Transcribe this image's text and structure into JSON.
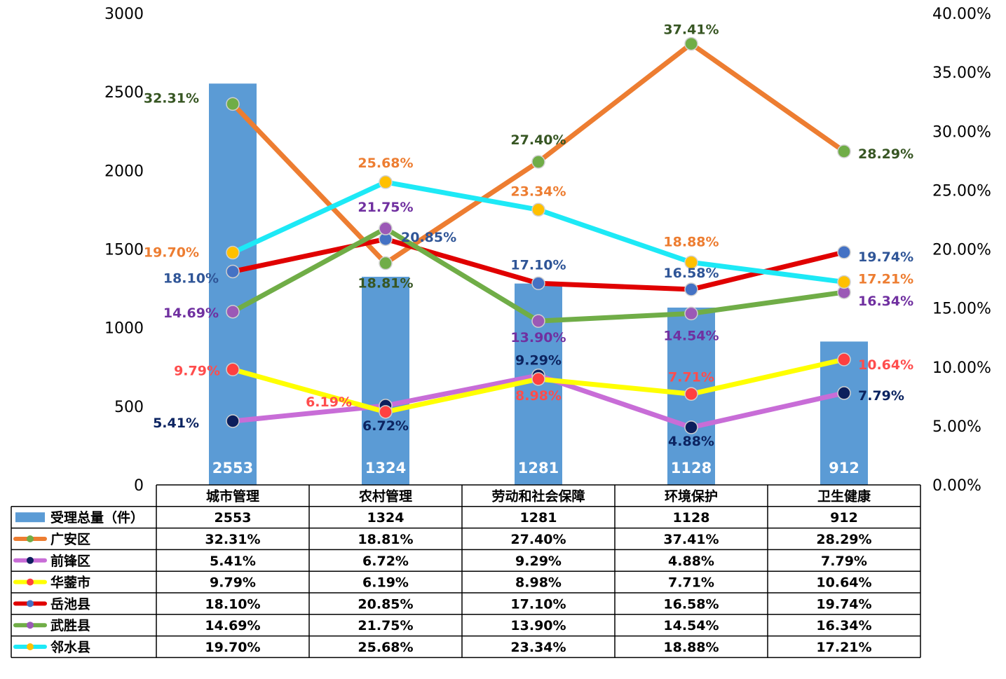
{
  "chart_data": {
    "type": "bar-line-combo",
    "categories": [
      "城市管理",
      "农村管理",
      "劳动和社会保障",
      "环境保护",
      "卫生健康"
    ],
    "bar_series": {
      "name": "受理总量（件）",
      "values": [
        2553,
        1324,
        1281,
        1128,
        912
      ],
      "color": "#5b9bd5"
    },
    "left_axis": {
      "min": 0,
      "max": 3000,
      "step": 500,
      "ticks": [
        "0",
        "500",
        "1000",
        "1500",
        "2000",
        "2500",
        "3000"
      ]
    },
    "right_axis": {
      "min": 0,
      "max": 40,
      "step": 5,
      "ticks": [
        "0.00%",
        "5.00%",
        "10.00%",
        "15.00%",
        "20.00%",
        "25.00%",
        "30.00%",
        "35.00%",
        "40.00%"
      ]
    },
    "line_series": [
      {
        "name": "广安区",
        "values": [
          32.31,
          18.81,
          27.4,
          37.41,
          28.29
        ],
        "labels": [
          "32.31%",
          "18.81%",
          "27.40%",
          "37.41%",
          "28.29%"
        ],
        "line_color": "#ed7d31",
        "marker_color": "#70ad47",
        "label_color": "#375623"
      },
      {
        "name": "前锋区",
        "values": [
          5.41,
          6.72,
          9.29,
          4.88,
          7.79
        ],
        "labels": [
          "5.41%",
          "6.72%",
          "9.29%",
          "4.88%",
          "7.79%"
        ],
        "line_color": "#c86dd7",
        "marker_color": "#0c1f5c",
        "label_color": "#0c2461"
      },
      {
        "name": "华蓥市",
        "values": [
          9.79,
          6.19,
          8.98,
          7.71,
          10.64
        ],
        "labels": [
          "9.79%",
          "6.19%",
          "8.98%",
          "7.71%",
          "10.64%"
        ],
        "line_color": "#ffff00",
        "marker_color": "#ff4040",
        "label_color": "#ff4d4d"
      },
      {
        "name": "岳池县",
        "values": [
          18.1,
          20.85,
          17.1,
          16.58,
          19.74
        ],
        "labels": [
          "18.10%",
          "20.85%",
          "17.10%",
          "16.58%",
          "19.74%"
        ],
        "line_color": "#e00000",
        "marker_color": "#4472c4",
        "label_color": "#2f5597"
      },
      {
        "name": "武胜县",
        "values": [
          14.69,
          21.75,
          13.9,
          14.54,
          16.34
        ],
        "labels": [
          "14.69%",
          "21.75%",
          "13.90%",
          "14.54%",
          "16.34%"
        ],
        "line_color": "#70ad47",
        "marker_color": "#9b59b6",
        "label_color": "#7030a0"
      },
      {
        "name": "邻水县",
        "values": [
          19.7,
          25.68,
          23.34,
          18.88,
          17.21
        ],
        "labels": [
          "19.70%",
          "25.68%",
          "23.34%",
          "18.88%",
          "17.21%"
        ],
        "line_color": "#1de9f6",
        "marker_color": "#ffc000",
        "label_color": "#ed7d31"
      }
    ],
    "table_rows": [
      {
        "name": "受理总量（件）",
        "cells": [
          "2553",
          "1324",
          "1281",
          "1128",
          "912"
        ]
      },
      {
        "name": "广安区",
        "cells": [
          "32.31%",
          "18.81%",
          "27.40%",
          "37.41%",
          "28.29%"
        ]
      },
      {
        "name": "前锋区",
        "cells": [
          "5.41%",
          "6.72%",
          "9.29%",
          "4.88%",
          "7.79%"
        ]
      },
      {
        "name": "华蓥市",
        "cells": [
          "9.79%",
          "6.19%",
          "8.98%",
          "7.71%",
          "10.64%"
        ]
      },
      {
        "name": "岳池县",
        "cells": [
          "18.10%",
          "20.85%",
          "17.10%",
          "16.58%",
          "19.74%"
        ]
      },
      {
        "name": "武胜县",
        "cells": [
          "14.69%",
          "21.75%",
          "13.90%",
          "14.54%",
          "16.34%"
        ]
      },
      {
        "name": "邻水县",
        "cells": [
          "19.70%",
          "25.68%",
          "23.34%",
          "18.88%",
          "17.21%"
        ]
      }
    ]
  }
}
